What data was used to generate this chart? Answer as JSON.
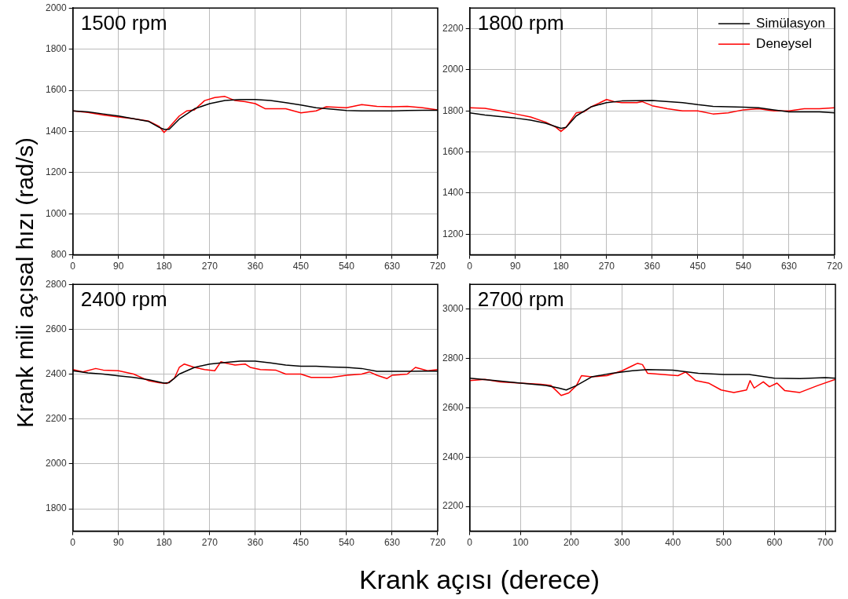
{
  "chart_data": [
    {
      "type": "line",
      "ylabel": "Krank mili açısal hızı (rad/s)",
      "annotations": [
        "1500 rpm"
      ],
      "xlim": [
        0,
        720
      ],
      "xticks": [
        0,
        90,
        180,
        270,
        360,
        450,
        540,
        630,
        720
      ],
      "ylim": [
        800,
        2000
      ],
      "yticks": [
        800,
        1000,
        1200,
        1400,
        1600,
        1800,
        2000
      ],
      "grid": true,
      "legend": false,
      "marker": "none",
      "line_style": "solid",
      "series": [
        {
          "color": "#000000",
          "x": [
            0,
            30,
            60,
            90,
            120,
            150,
            170,
            180,
            190,
            210,
            240,
            270,
            300,
            330,
            360,
            390,
            420,
            450,
            480,
            510,
            540,
            570,
            600,
            630,
            660,
            690,
            720
          ],
          "values": [
            1500,
            1495,
            1485,
            1475,
            1462,
            1448,
            1420,
            1410,
            1410,
            1460,
            1510,
            1535,
            1550,
            1555,
            1555,
            1550,
            1540,
            1528,
            1515,
            1508,
            1502,
            1500,
            1500,
            1500,
            1502,
            1503,
            1503
          ]
        },
        {
          "color": "#ff0000",
          "x": [
            0,
            30,
            60,
            90,
            120,
            150,
            170,
            180,
            190,
            210,
            225,
            240,
            260,
            280,
            300,
            320,
            340,
            360,
            380,
            420,
            450,
            480,
            500,
            540,
            570,
            600,
            630,
            660,
            690,
            720
          ],
          "values": [
            1500,
            1492,
            1480,
            1470,
            1462,
            1450,
            1425,
            1395,
            1420,
            1475,
            1500,
            1505,
            1550,
            1565,
            1570,
            1550,
            1545,
            1535,
            1510,
            1510,
            1490,
            1500,
            1520,
            1515,
            1530,
            1522,
            1520,
            1522,
            1515,
            1505
          ]
        }
      ]
    },
    {
      "type": "line",
      "annotations": [
        "1800 rpm"
      ],
      "xlim": [
        0,
        720
      ],
      "xticks": [
        0,
        90,
        180,
        270,
        360,
        450,
        540,
        630,
        720
      ],
      "ylim": [
        1100,
        2300
      ],
      "yticks": [
        1200,
        1400,
        1600,
        1800,
        2000,
        2200
      ],
      "grid": true,
      "legend": "top right",
      "marker": "none",
      "line_style": "solid",
      "series": [
        {
          "name": "Simülasyon",
          "color": "#000000",
          "x": [
            0,
            30,
            60,
            90,
            120,
            150,
            180,
            190,
            210,
            240,
            270,
            300,
            360,
            420,
            450,
            480,
            540,
            570,
            600,
            630,
            690,
            720
          ],
          "values": [
            1790,
            1780,
            1772,
            1765,
            1755,
            1740,
            1715,
            1720,
            1775,
            1820,
            1840,
            1848,
            1850,
            1840,
            1830,
            1822,
            1818,
            1815,
            1805,
            1795,
            1795,
            1790
          ]
        },
        {
          "name": "Deneysel",
          "color": "#ff0000",
          "x": [
            0,
            30,
            60,
            90,
            120,
            150,
            170,
            180,
            190,
            210,
            225,
            240,
            270,
            285,
            300,
            330,
            340,
            360,
            390,
            420,
            450,
            480,
            510,
            540,
            570,
            600,
            630,
            660,
            690,
            720
          ],
          "values": [
            1815,
            1812,
            1800,
            1785,
            1770,
            1745,
            1720,
            1700,
            1720,
            1790,
            1795,
            1820,
            1855,
            1845,
            1840,
            1840,
            1845,
            1825,
            1810,
            1800,
            1800,
            1785,
            1790,
            1805,
            1810,
            1800,
            1800,
            1810,
            1810,
            1815
          ]
        }
      ]
    },
    {
      "type": "line",
      "xlabel": "Krank açısı (derece)",
      "annotations": [
        "2400 rpm"
      ],
      "xlim": [
        0,
        720
      ],
      "xticks": [
        0,
        90,
        180,
        270,
        360,
        450,
        540,
        630,
        720
      ],
      "ylim": [
        1700,
        2800
      ],
      "yticks": [
        1800,
        2000,
        2200,
        2400,
        2600,
        2800
      ],
      "grid": true,
      "legend": false,
      "marker": "none",
      "line_style": "solid",
      "series": [
        {
          "color": "#000000",
          "x": [
            0,
            30,
            60,
            90,
            120,
            150,
            180,
            190,
            210,
            240,
            270,
            300,
            330,
            360,
            390,
            420,
            450,
            480,
            510,
            540,
            570,
            600,
            630,
            660,
            690,
            720
          ],
          "values": [
            2415,
            2405,
            2400,
            2392,
            2385,
            2375,
            2360,
            2362,
            2400,
            2430,
            2445,
            2452,
            2458,
            2458,
            2450,
            2440,
            2435,
            2435,
            2432,
            2430,
            2425,
            2412,
            2412,
            2412,
            2413,
            2413
          ]
        },
        {
          "color": "#ff0000",
          "x": [
            0,
            20,
            45,
            60,
            90,
            120,
            150,
            170,
            185,
            200,
            210,
            220,
            240,
            260,
            280,
            292,
            300,
            320,
            340,
            350,
            370,
            400,
            420,
            450,
            470,
            510,
            540,
            570,
            585,
            600,
            620,
            630,
            660,
            676,
            700,
            720
          ],
          "values": [
            2420,
            2410,
            2425,
            2418,
            2415,
            2400,
            2370,
            2362,
            2358,
            2380,
            2430,
            2445,
            2430,
            2420,
            2415,
            2455,
            2450,
            2440,
            2445,
            2430,
            2420,
            2418,
            2400,
            2400,
            2385,
            2385,
            2395,
            2400,
            2410,
            2395,
            2380,
            2395,
            2400,
            2430,
            2415,
            2420
          ]
        }
      ]
    },
    {
      "type": "line",
      "annotations": [
        "2700 rpm"
      ],
      "xlim": [
        0,
        720
      ],
      "xticks": [
        0,
        100,
        200,
        300,
        400,
        500,
        600,
        700
      ],
      "ylim": [
        2100,
        3100
      ],
      "yticks": [
        2200,
        2400,
        2600,
        2800,
        3000
      ],
      "grid": true,
      "legend": false,
      "marker": "none",
      "line_style": "solid",
      "series": [
        {
          "color": "#000000",
          "x": [
            0,
            50,
            100,
            150,
            175,
            190,
            210,
            240,
            280,
            320,
            350,
            400,
            450,
            500,
            550,
            600,
            650,
            700,
            720
          ],
          "values": [
            2720,
            2710,
            2700,
            2690,
            2680,
            2672,
            2690,
            2725,
            2740,
            2750,
            2755,
            2752,
            2740,
            2735,
            2735,
            2720,
            2718,
            2722,
            2720
          ]
        },
        {
          "color": "#ff0000",
          "x": [
            0,
            30,
            60,
            100,
            140,
            160,
            170,
            180,
            195,
            210,
            220,
            240,
            270,
            300,
            320,
            330,
            340,
            350,
            380,
            410,
            425,
            445,
            470,
            495,
            520,
            545,
            552,
            560,
            578,
            590,
            605,
            620,
            650,
            685,
            720
          ],
          "values": [
            2710,
            2715,
            2705,
            2700,
            2695,
            2690,
            2670,
            2650,
            2660,
            2690,
            2730,
            2725,
            2730,
            2750,
            2770,
            2780,
            2775,
            2740,
            2735,
            2730,
            2745,
            2710,
            2700,
            2672,
            2662,
            2672,
            2710,
            2680,
            2705,
            2685,
            2700,
            2670,
            2662,
            2690,
            2715
          ]
        }
      ]
    }
  ]
}
